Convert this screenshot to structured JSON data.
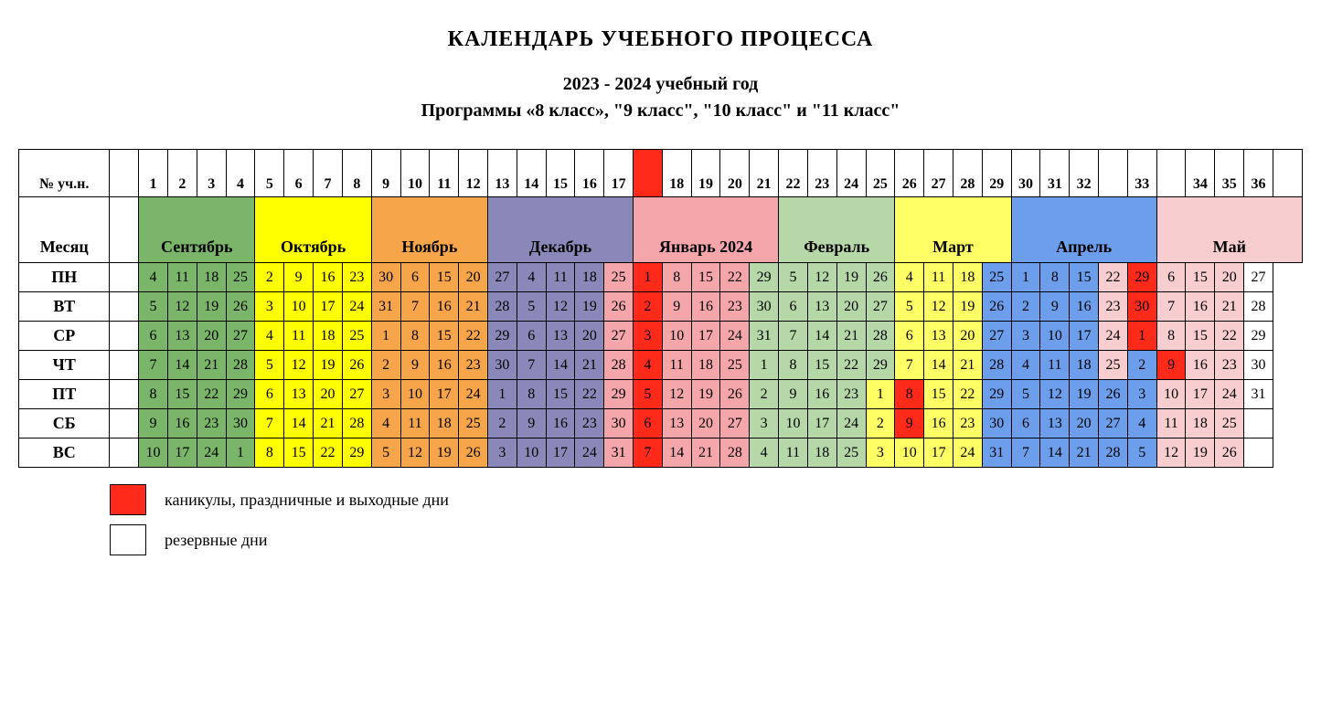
{
  "title": "КАЛЕНДАРЬ  УЧЕБНОГО ПРОЦЕССА",
  "year_line": "2023 - 2024 учебный год",
  "program_line": "Программы «8 класс», \"9 класс\", \"10 класс\" и \"11 класс\"",
  "row_headers": {
    "week_num": "№ уч.н.",
    "month": "Месяц",
    "days": [
      "ПН",
      "ВТ",
      "СР",
      "ЧТ",
      "ПТ",
      "СБ",
      "ВС"
    ]
  },
  "colors": {
    "reserve": "#ffffff",
    "holiday": "#ff2a1a",
    "border": "#000000",
    "text": "#000000"
  },
  "months": [
    {
      "label": "Сентябрь",
      "span": 4,
      "color": "#7ab56a"
    },
    {
      "label": "Октябрь",
      "span": 4,
      "color": "#ffff00"
    },
    {
      "label": "Ноябрь",
      "span": 4,
      "color": "#f7a54a"
    },
    {
      "label": "Декабрь",
      "span": 5,
      "color": "#8a88b8"
    },
    {
      "label": "Январь 2024",
      "span": 5,
      "color": "#f4a6ab"
    },
    {
      "label": "Февраль",
      "span": 4,
      "color": "#b6d7a8"
    },
    {
      "label": "Март",
      "span": 4,
      "color": "#ffff66"
    },
    {
      "label": "Апрель",
      "span": 5,
      "color": "#6d9eeb"
    },
    {
      "label": "Май",
      "span": 5,
      "color": "#f7cdd0"
    }
  ],
  "week_labels_row": [
    "",
    "1",
    "2",
    "3",
    "4",
    "5",
    "6",
    "7",
    "8",
    "9",
    "10",
    "11",
    "12",
    "13",
    "14",
    "15",
    "16",
    "17",
    "",
    "18",
    "19",
    "20",
    "21",
    "22",
    "23",
    "24",
    "25",
    "26",
    "27",
    "28",
    "29",
    "30",
    "31",
    "32",
    "",
    "33",
    "",
    "34",
    "35",
    "36",
    ""
  ],
  "break_col_color": "#ff2a1a",
  "columns": [
    {
      "bg": "#ffffff"
    },
    {
      "bg": "#7ab56a"
    },
    {
      "bg": "#7ab56a"
    },
    {
      "bg": "#7ab56a"
    },
    {
      "bg": "#7ab56a"
    },
    {
      "bg": "#ffff00"
    },
    {
      "bg": "#ffff00"
    },
    {
      "bg": "#ffff00"
    },
    {
      "bg": "#ffff00"
    },
    {
      "bg": "#f7a54a"
    },
    {
      "bg": "#f7a54a"
    },
    {
      "bg": "#f7a54a"
    },
    {
      "bg": "#f7a54a"
    },
    {
      "bg": "#8a88b8"
    },
    {
      "bg": "#8a88b8"
    },
    {
      "bg": "#8a88b8"
    },
    {
      "bg": "#8a88b8"
    },
    {
      "bg": "#8a88b8"
    },
    {
      "bg": "#ff2a1a"
    },
    {
      "bg": "#f4a6ab"
    },
    {
      "bg": "#f4a6ab"
    },
    {
      "bg": "#f4a6ab"
    },
    {
      "bg": "#f4a6ab"
    },
    {
      "bg": "#b6d7a8"
    },
    {
      "bg": "#b6d7a8"
    },
    {
      "bg": "#b6d7a8"
    },
    {
      "bg": "#b6d7a8"
    },
    {
      "bg": "#ffff66"
    },
    {
      "bg": "#ffff66"
    },
    {
      "bg": "#ffff66"
    },
    {
      "bg": "#ffff66"
    },
    {
      "bg": "#6d9eeb"
    },
    {
      "bg": "#6d9eeb"
    },
    {
      "bg": "#6d9eeb"
    },
    {
      "bg": "#6d9eeb"
    },
    {
      "bg": "#6d9eeb"
    },
    {
      "bg": "#f7cdd0"
    },
    {
      "bg": "#f7cdd0"
    },
    {
      "bg": "#f7cdd0"
    },
    {
      "bg": "#f7cdd0"
    },
    {
      "bg": "#f7cdd0"
    }
  ],
  "day_grid": [
    [
      {
        "v": ""
      },
      {
        "v": "4"
      },
      {
        "v": "11"
      },
      {
        "v": "18"
      },
      {
        "v": "25"
      },
      {
        "v": "2"
      },
      {
        "v": "9"
      },
      {
        "v": "16"
      },
      {
        "v": "23"
      },
      {
        "v": "30"
      },
      {
        "v": "6"
      },
      {
        "v": "15"
      },
      {
        "v": "20"
      },
      {
        "v": "27"
      },
      {
        "v": "4"
      },
      {
        "v": "11"
      },
      {
        "v": "18"
      },
      {
        "v": "25",
        "bg": "#f4a6ab"
      },
      {
        "v": "1",
        "bg": "#ff2a1a"
      },
      {
        "v": "8"
      },
      {
        "v": "15"
      },
      {
        "v": "22"
      },
      {
        "v": "29",
        "bg": "#b6d7a8"
      },
      {
        "v": "5"
      },
      {
        "v": "12"
      },
      {
        "v": "19"
      },
      {
        "v": "26"
      },
      {
        "v": "4"
      },
      {
        "v": "11"
      },
      {
        "v": "18"
      },
      {
        "v": "25",
        "bg": "#6d9eeb"
      },
      {
        "v": "1"
      },
      {
        "v": "8"
      },
      {
        "v": "15"
      },
      {
        "v": "22",
        "bg": "#f7cdd0"
      },
      {
        "v": "29",
        "bg": "#ff2a1a"
      },
      {
        "v": "6"
      },
      {
        "v": "15"
      },
      {
        "v": "20"
      },
      {
        "v": "27",
        "bg": "#ffffff"
      }
    ],
    [
      {
        "v": ""
      },
      {
        "v": "5"
      },
      {
        "v": "12"
      },
      {
        "v": "19"
      },
      {
        "v": "26"
      },
      {
        "v": "3"
      },
      {
        "v": "10"
      },
      {
        "v": "17"
      },
      {
        "v": "24"
      },
      {
        "v": "31"
      },
      {
        "v": "7"
      },
      {
        "v": "16"
      },
      {
        "v": "21"
      },
      {
        "v": "28"
      },
      {
        "v": "5"
      },
      {
        "v": "12"
      },
      {
        "v": "19"
      },
      {
        "v": "26",
        "bg": "#f4a6ab"
      },
      {
        "v": "2",
        "bg": "#ff2a1a"
      },
      {
        "v": "9"
      },
      {
        "v": "16"
      },
      {
        "v": "23"
      },
      {
        "v": "30",
        "bg": "#b6d7a8"
      },
      {
        "v": "6"
      },
      {
        "v": "13"
      },
      {
        "v": "20"
      },
      {
        "v": "27"
      },
      {
        "v": "5"
      },
      {
        "v": "12"
      },
      {
        "v": "19"
      },
      {
        "v": "26",
        "bg": "#6d9eeb"
      },
      {
        "v": "2"
      },
      {
        "v": "9"
      },
      {
        "v": "16"
      },
      {
        "v": "23",
        "bg": "#f7cdd0"
      },
      {
        "v": "30",
        "bg": "#ff2a1a"
      },
      {
        "v": "7"
      },
      {
        "v": "16"
      },
      {
        "v": "21"
      },
      {
        "v": "28",
        "bg": "#ffffff"
      }
    ],
    [
      {
        "v": ""
      },
      {
        "v": "6"
      },
      {
        "v": "13"
      },
      {
        "v": "20"
      },
      {
        "v": "27"
      },
      {
        "v": "4"
      },
      {
        "v": "11"
      },
      {
        "v": "18"
      },
      {
        "v": "25"
      },
      {
        "v": "1"
      },
      {
        "v": "8"
      },
      {
        "v": "15"
      },
      {
        "v": "22"
      },
      {
        "v": "29"
      },
      {
        "v": "6"
      },
      {
        "v": "13"
      },
      {
        "v": "20"
      },
      {
        "v": "27",
        "bg": "#f4a6ab"
      },
      {
        "v": "3",
        "bg": "#ff2a1a"
      },
      {
        "v": "10"
      },
      {
        "v": "17"
      },
      {
        "v": "24"
      },
      {
        "v": "31",
        "bg": "#b6d7a8"
      },
      {
        "v": "7"
      },
      {
        "v": "14"
      },
      {
        "v": "21"
      },
      {
        "v": "28"
      },
      {
        "v": "6"
      },
      {
        "v": "13"
      },
      {
        "v": "20"
      },
      {
        "v": "27",
        "bg": "#6d9eeb"
      },
      {
        "v": "3"
      },
      {
        "v": "10"
      },
      {
        "v": "17"
      },
      {
        "v": "24",
        "bg": "#f7cdd0"
      },
      {
        "v": "1",
        "bg": "#ff2a1a"
      },
      {
        "v": "8"
      },
      {
        "v": "15"
      },
      {
        "v": "22"
      },
      {
        "v": "29",
        "bg": "#ffffff"
      }
    ],
    [
      {
        "v": ""
      },
      {
        "v": "7"
      },
      {
        "v": "14"
      },
      {
        "v": "21"
      },
      {
        "v": "28"
      },
      {
        "v": "5"
      },
      {
        "v": "12"
      },
      {
        "v": "19"
      },
      {
        "v": "26"
      },
      {
        "v": "2"
      },
      {
        "v": "9"
      },
      {
        "v": "16"
      },
      {
        "v": "23"
      },
      {
        "v": "30"
      },
      {
        "v": "7"
      },
      {
        "v": "14"
      },
      {
        "v": "21"
      },
      {
        "v": "28",
        "bg": "#f4a6ab"
      },
      {
        "v": "4",
        "bg": "#ff2a1a"
      },
      {
        "v": "11"
      },
      {
        "v": "18"
      },
      {
        "v": "25"
      },
      {
        "v": "1",
        "bg": "#b6d7a8"
      },
      {
        "v": "8"
      },
      {
        "v": "15"
      },
      {
        "v": "22"
      },
      {
        "v": "29"
      },
      {
        "v": "7"
      },
      {
        "v": "14"
      },
      {
        "v": "21"
      },
      {
        "v": "28",
        "bg": "#6d9eeb"
      },
      {
        "v": "4"
      },
      {
        "v": "11"
      },
      {
        "v": "18"
      },
      {
        "v": "25",
        "bg": "#f7cdd0"
      },
      {
        "v": "2"
      },
      {
        "v": "9",
        "bg": "#ff2a1a"
      },
      {
        "v": "16"
      },
      {
        "v": "23"
      },
      {
        "v": "30",
        "bg": "#ffffff"
      }
    ],
    [
      {
        "v": "",
        "bg": "#ffffff"
      },
      {
        "v": "8"
      },
      {
        "v": "15"
      },
      {
        "v": "22"
      },
      {
        "v": "29"
      },
      {
        "v": "6"
      },
      {
        "v": "13"
      },
      {
        "v": "20"
      },
      {
        "v": "27"
      },
      {
        "v": "3"
      },
      {
        "v": "10"
      },
      {
        "v": "17"
      },
      {
        "v": "24"
      },
      {
        "v": "1"
      },
      {
        "v": "8"
      },
      {
        "v": "15"
      },
      {
        "v": "22"
      },
      {
        "v": "29",
        "bg": "#f4a6ab"
      },
      {
        "v": "5",
        "bg": "#ff2a1a"
      },
      {
        "v": "12"
      },
      {
        "v": "19"
      },
      {
        "v": "26"
      },
      {
        "v": "2",
        "bg": "#b6d7a8"
      },
      {
        "v": "9"
      },
      {
        "v": "16"
      },
      {
        "v": "23"
      },
      {
        "v": "1",
        "bg": "#ffff66"
      },
      {
        "v": "8",
        "bg": "#ff2a1a"
      },
      {
        "v": "15"
      },
      {
        "v": "22"
      },
      {
        "v": "29",
        "bg": "#6d9eeb"
      },
      {
        "v": "5"
      },
      {
        "v": "12"
      },
      {
        "v": "19"
      },
      {
        "v": "26"
      },
      {
        "v": "3"
      },
      {
        "v": "10"
      },
      {
        "v": "17"
      },
      {
        "v": "24"
      },
      {
        "v": "31",
        "bg": "#ffffff"
      }
    ],
    [
      {
        "v": ""
      },
      {
        "v": "9"
      },
      {
        "v": "16"
      },
      {
        "v": "23"
      },
      {
        "v": "30"
      },
      {
        "v": "7"
      },
      {
        "v": "14"
      },
      {
        "v": "21"
      },
      {
        "v": "28"
      },
      {
        "v": "4"
      },
      {
        "v": "11"
      },
      {
        "v": "18"
      },
      {
        "v": "25"
      },
      {
        "v": "2"
      },
      {
        "v": "9"
      },
      {
        "v": "16"
      },
      {
        "v": "23"
      },
      {
        "v": "30",
        "bg": "#f4a6ab"
      },
      {
        "v": "6",
        "bg": "#ff2a1a"
      },
      {
        "v": "13"
      },
      {
        "v": "20"
      },
      {
        "v": "27"
      },
      {
        "v": "3",
        "bg": "#b6d7a8"
      },
      {
        "v": "10"
      },
      {
        "v": "17"
      },
      {
        "v": "24"
      },
      {
        "v": "2",
        "bg": "#ffff66"
      },
      {
        "v": "9",
        "bg": "#ff2a1a"
      },
      {
        "v": "16"
      },
      {
        "v": "23"
      },
      {
        "v": "30",
        "bg": "#6d9eeb"
      },
      {
        "v": "6"
      },
      {
        "v": "13"
      },
      {
        "v": "20"
      },
      {
        "v": "27"
      },
      {
        "v": "4"
      },
      {
        "v": "11"
      },
      {
        "v": "18"
      },
      {
        "v": "25"
      },
      {
        "v": "",
        "bg": "#ffffff"
      }
    ],
    [
      {
        "v": ""
      },
      {
        "v": "10"
      },
      {
        "v": "17"
      },
      {
        "v": "24"
      },
      {
        "v": "1"
      },
      {
        "v": "8"
      },
      {
        "v": "15"
      },
      {
        "v": "22"
      },
      {
        "v": "29"
      },
      {
        "v": "5"
      },
      {
        "v": "12"
      },
      {
        "v": "19"
      },
      {
        "v": "26"
      },
      {
        "v": "3"
      },
      {
        "v": "10"
      },
      {
        "v": "17"
      },
      {
        "v": "24"
      },
      {
        "v": "31",
        "bg": "#f4a6ab"
      },
      {
        "v": "7",
        "bg": "#ff2a1a"
      },
      {
        "v": "14"
      },
      {
        "v": "21"
      },
      {
        "v": "28"
      },
      {
        "v": "4",
        "bg": "#b6d7a8"
      },
      {
        "v": "11"
      },
      {
        "v": "18"
      },
      {
        "v": "25"
      },
      {
        "v": "3",
        "bg": "#ffff66"
      },
      {
        "v": "10"
      },
      {
        "v": "17"
      },
      {
        "v": "24"
      },
      {
        "v": "31",
        "bg": "#6d9eeb"
      },
      {
        "v": "7"
      },
      {
        "v": "14"
      },
      {
        "v": "21"
      },
      {
        "v": "28"
      },
      {
        "v": "5"
      },
      {
        "v": "12"
      },
      {
        "v": "19"
      },
      {
        "v": "26"
      },
      {
        "v": "",
        "bg": "#ffffff"
      }
    ]
  ],
  "legend": [
    {
      "color": "#ff2a1a",
      "text": "каникулы, праздничные и выходные дни"
    },
    {
      "color": "#ffffff",
      "text": "резервные дни"
    }
  ]
}
